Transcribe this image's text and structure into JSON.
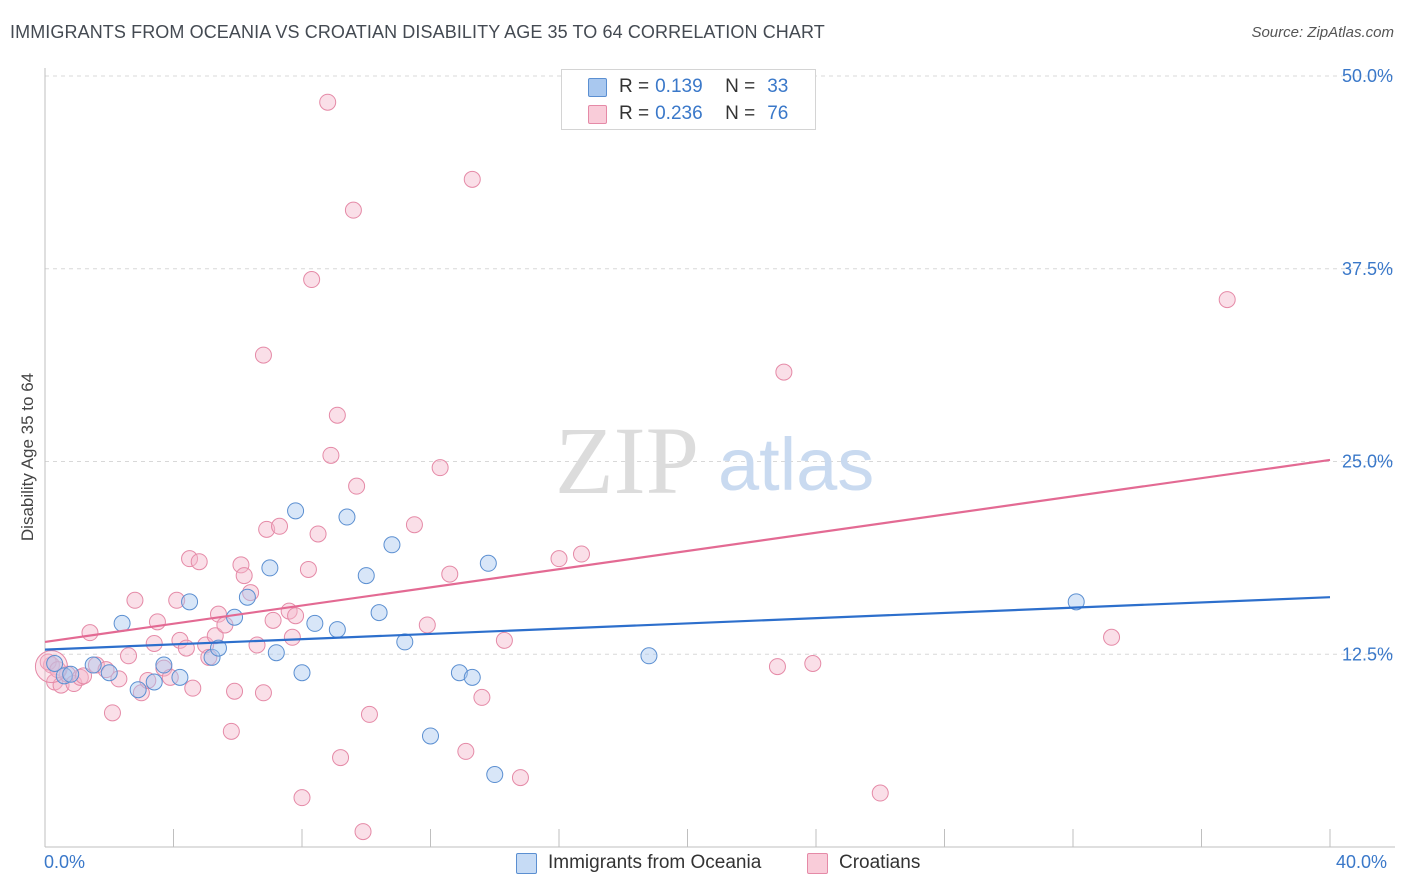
{
  "header": {
    "title": "IMMIGRANTS FROM OCEANIA VS CROATIAN DISABILITY AGE 35 TO 64 CORRELATION CHART",
    "source": "Source: ZipAtlas.com"
  },
  "watermark": {
    "zip": "ZIP",
    "atlas": "atlas"
  },
  "legend_top": [
    {
      "r_label": "R =",
      "r_value": "0.139",
      "n_label": "N =",
      "n_value": "33"
    },
    {
      "r_label": "R =",
      "r_value": "0.236",
      "n_label": "N =",
      "n_value": "76"
    }
  ],
  "legend_bottom": [
    {
      "label": "Immigrants from Oceania"
    },
    {
      "label": "Croatians"
    }
  ],
  "colors": {
    "blue_fill": "#a9c8ef",
    "blue_stroke": "#5b8fd1",
    "blue_line": "#2d6fcc",
    "pink_fill": "#f5b8cb",
    "pink_stroke": "#e58aa7",
    "pink_line": "#e36a93",
    "axis_label": "#3a78c9",
    "grid": "#d8d8d8"
  },
  "chart_data": {
    "type": "scatter",
    "title": "IMMIGRANTS FROM OCEANIA VS CROATIAN DISABILITY AGE 35 TO 64 CORRELATION CHART",
    "xlabel": "",
    "ylabel": "Disability Age 35 to 64",
    "xlim": [
      0,
      40
    ],
    "ylim": [
      0,
      50
    ],
    "x_tick_labels": [
      "0.0%",
      "40.0%"
    ],
    "y_ticks": [
      12.5,
      25.0,
      37.5,
      50.0
    ],
    "y_tick_labels": [
      "12.5%",
      "25.0%",
      "37.5%",
      "50.0%"
    ],
    "grid": "horizontal dashed",
    "legend": "top-center",
    "series": [
      {
        "name": "Immigrants from Oceania",
        "trend": {
          "x": [
            0,
            40
          ],
          "y": [
            12.8,
            16.2
          ]
        },
        "points": [
          [
            0.3,
            11.9
          ],
          [
            0.6,
            11.1
          ],
          [
            0.8,
            11.2
          ],
          [
            1.5,
            11.8
          ],
          [
            2.0,
            11.3
          ],
          [
            2.4,
            14.5
          ],
          [
            2.9,
            10.2
          ],
          [
            3.4,
            10.7
          ],
          [
            3.7,
            11.8
          ],
          [
            4.2,
            11.0
          ],
          [
            4.5,
            15.9
          ],
          [
            5.2,
            12.3
          ],
          [
            5.4,
            12.9
          ],
          [
            5.9,
            14.9
          ],
          [
            6.3,
            16.2
          ],
          [
            7.0,
            18.1
          ],
          [
            7.2,
            12.6
          ],
          [
            7.8,
            21.8
          ],
          [
            8.0,
            11.3
          ],
          [
            8.4,
            14.5
          ],
          [
            9.1,
            14.1
          ],
          [
            9.4,
            21.4
          ],
          [
            10.0,
            17.6
          ],
          [
            10.4,
            15.2
          ],
          [
            10.8,
            19.6
          ],
          [
            11.2,
            13.3
          ],
          [
            12.0,
            7.2
          ],
          [
            12.9,
            11.3
          ],
          [
            13.3,
            11.0
          ],
          [
            13.8,
            18.4
          ],
          [
            14.0,
            4.7
          ],
          [
            18.8,
            12.4
          ],
          [
            32.1,
            15.9
          ]
        ]
      },
      {
        "name": "Croatians",
        "trend": {
          "x": [
            0,
            40
          ],
          "y": [
            13.3,
            25.1
          ]
        },
        "points": [
          [
            0.2,
            11.8
          ],
          [
            0.3,
            10.7
          ],
          [
            0.5,
            10.5
          ],
          [
            0.7,
            11.2
          ],
          [
            0.9,
            10.6
          ],
          [
            1.1,
            11.0
          ],
          [
            1.4,
            13.9
          ],
          [
            1.6,
            11.8
          ],
          [
            1.9,
            11.5
          ],
          [
            2.1,
            8.7
          ],
          [
            2.3,
            10.9
          ],
          [
            2.6,
            12.4
          ],
          [
            2.8,
            16.0
          ],
          [
            3.0,
            10.0
          ],
          [
            3.2,
            10.8
          ],
          [
            3.4,
            13.2
          ],
          [
            3.5,
            14.6
          ],
          [
            3.7,
            11.6
          ],
          [
            3.9,
            11.0
          ],
          [
            4.1,
            16.0
          ],
          [
            4.2,
            13.4
          ],
          [
            4.4,
            12.9
          ],
          [
            4.5,
            18.7
          ],
          [
            4.6,
            10.3
          ],
          [
            4.8,
            18.5
          ],
          [
            5.0,
            13.1
          ],
          [
            5.1,
            12.3
          ],
          [
            5.3,
            13.7
          ],
          [
            5.4,
            15.1
          ],
          [
            5.6,
            14.4
          ],
          [
            5.8,
            7.5
          ],
          [
            5.9,
            10.1
          ],
          [
            6.1,
            18.3
          ],
          [
            6.2,
            17.6
          ],
          [
            6.4,
            16.5
          ],
          [
            6.6,
            13.1
          ],
          [
            6.8,
            10.0
          ],
          [
            6.8,
            31.9
          ],
          [
            6.9,
            20.6
          ],
          [
            7.1,
            14.7
          ],
          [
            7.3,
            20.8
          ],
          [
            7.6,
            15.3
          ],
          [
            7.7,
            13.6
          ],
          [
            7.8,
            15.0
          ],
          [
            8.0,
            3.2
          ],
          [
            8.2,
            18.0
          ],
          [
            8.3,
            36.8
          ],
          [
            8.5,
            20.3
          ],
          [
            8.8,
            48.3
          ],
          [
            8.9,
            25.4
          ],
          [
            9.1,
            28.0
          ],
          [
            9.2,
            5.8
          ],
          [
            9.6,
            41.3
          ],
          [
            9.7,
            23.4
          ],
          [
            9.9,
            1.0
          ],
          [
            10.1,
            8.6
          ],
          [
            11.5,
            20.9
          ],
          [
            11.9,
            14.4
          ],
          [
            12.3,
            24.6
          ],
          [
            12.6,
            17.7
          ],
          [
            13.1,
            6.2
          ],
          [
            13.3,
            43.3
          ],
          [
            13.6,
            9.7
          ],
          [
            14.3,
            13.4
          ],
          [
            14.8,
            4.5
          ],
          [
            16.0,
            18.7
          ],
          [
            16.7,
            19.0
          ],
          [
            22.8,
            11.7
          ],
          [
            23.0,
            30.8
          ],
          [
            23.9,
            11.9
          ],
          [
            26.0,
            3.5
          ],
          [
            33.2,
            13.6
          ],
          [
            36.8,
            35.5
          ],
          [
            0.1,
            12.0
          ],
          [
            0.4,
            11.5
          ],
          [
            1.2,
            11.1
          ]
        ]
      }
    ]
  }
}
